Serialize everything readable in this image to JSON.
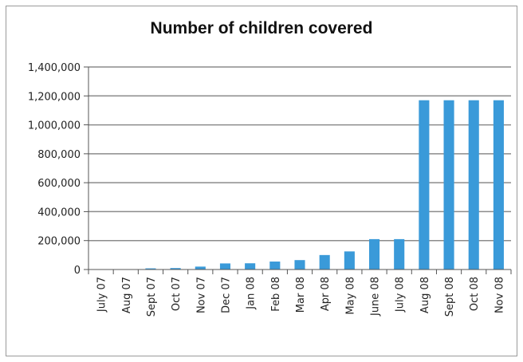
{
  "chart_data": {
    "type": "bar",
    "title": "Number of children covered",
    "xlabel": "",
    "ylabel": "",
    "categories": [
      "July 07",
      "Aug 07",
      "Sept 07",
      "Oct 07",
      "Nov 07",
      "Dec 07",
      "Jan 08",
      "Feb 08",
      "Mar 08",
      "Apr 08",
      "May 08",
      "June 08",
      "July 08",
      "Aug 08",
      "Sept 08",
      "Oct 08",
      "Nov 08"
    ],
    "values": [
      0,
      0,
      8000,
      10000,
      20000,
      42000,
      43000,
      55000,
      65000,
      100000,
      125000,
      210000,
      210000,
      1170000,
      1170000,
      1170000,
      1170000
    ],
    "ylim": [
      0,
      1400000
    ],
    "yticks": [
      "0",
      "200,000",
      "400,000",
      "600,000",
      "800,000",
      "1,000,000",
      "1,200,000",
      "1,400,000"
    ],
    "grid": true,
    "legend": "none",
    "bar_color": "#3a9ad9",
    "grid_color": "#8c8c8c"
  }
}
